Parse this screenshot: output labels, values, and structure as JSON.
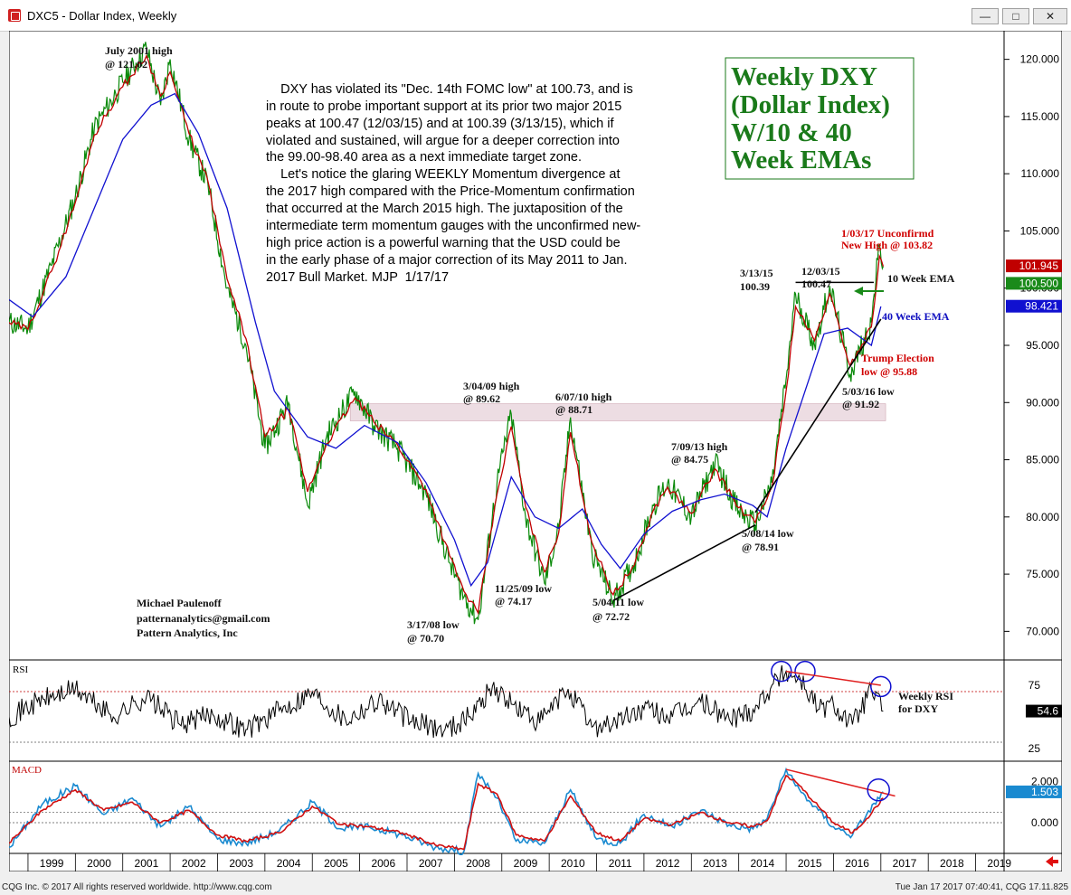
{
  "window": {
    "title": "DXC5 - Dollar Index, Weekly",
    "buttons": {
      "minimize": "—",
      "maximize": "□",
      "close": "✕"
    }
  },
  "footer": {
    "left": "CQG Inc. © 2017 All rights reserved worldwide. http://www.cqg.com",
    "right": "Tue Jan 17 2017 07:40:41, CQG 17.11.825"
  },
  "headline_box": [
    "Weekly DXY",
    "(Dollar Index)",
    "W/10 & 40",
    "Week EMAs"
  ],
  "commentary": [
    "    DXY has violated its \"Dec. 14th FOMC low\" at 100.73, and is",
    "in route to probe important support at its prior two major 2015",
    "peaks at 100.47 (12/03/15) and at 100.39 (3/13/15), which if",
    "violated and sustained, will argue for a deeper correction into",
    "the 99.00-98.40 area as a next immediate target zone.",
    "    Let's notice the glaring WEEKLY Momentum divergence at",
    "the 2017 high compared with the Price-Momentum confirmation",
    "that occurred at the March 2015 high. The juxtaposition of the",
    "intermediate term momentum gauges with the unconfirmed new-",
    "high price action is a powerful warning that the USD could be",
    "in the early phase of a major correction of its May 2011 to Jan.",
    "2017 Bull Market. MJP  1/17/17"
  ],
  "author": [
    "Michael Paulenoff",
    "patternanalytics@gmail.com",
    "Pattern Analytics, Inc"
  ],
  "colors": {
    "price": "#0a8a0a",
    "ema10": "#c00000",
    "ema40": "#1010d0",
    "annotation_red": "#d00000",
    "headline_green": "#1a7a1a"
  },
  "chart_data": [
    {
      "type": "line",
      "title": "DXC5 - Dollar Index, Weekly",
      "x_range": [
        1998.6,
        2019.6
      ],
      "ylim": [
        67.5,
        122.5
      ],
      "y_ticks": [
        70,
        75,
        80,
        85,
        90,
        95,
        100,
        105,
        110,
        115,
        120
      ],
      "y_tick_labels": [
        "70.000",
        "75.000",
        "80.000",
        "85.000",
        "90.000",
        "95.000",
        "100.000",
        "105.000",
        "110.000",
        "115.000",
        "120.000"
      ],
      "x_tick_labels": [
        "1999",
        "2000",
        "2001",
        "2002",
        "2003",
        "2004",
        "2005",
        "2006",
        "2007",
        "2008",
        "2009",
        "2010",
        "2011",
        "2012",
        "2013",
        "2014",
        "2015",
        "2016",
        "2017",
        "2018",
        "2019"
      ],
      "series": [
        {
          "key": "price",
          "x": [
            1998.6,
            1999.0,
            1999.5,
            2000.0,
            2000.4,
            2000.85,
            2001.0,
            2001.5,
            2001.8,
            2002.0,
            2002.4,
            2002.8,
            2003.2,
            2003.6,
            2004.0,
            2004.5,
            2004.9,
            2005.3,
            2005.9,
            2006.3,
            2006.8,
            2007.4,
            2007.9,
            2008.2,
            2008.5,
            2008.9,
            2009.2,
            2009.5,
            2009.9,
            2010.2,
            2010.45,
            2010.9,
            2011.35,
            2011.8,
            2012.2,
            2012.5,
            2013.0,
            2013.5,
            2014.0,
            2014.35,
            2014.7,
            2015.0,
            2015.2,
            2015.6,
            2015.92,
            2016.35,
            2016.8,
            2016.97,
            2017.05
          ],
          "y": [
            97,
            96.5,
            102,
            108,
            114,
            117,
            118,
            121,
            116,
            120,
            113,
            109,
            100,
            95,
            86,
            90,
            81,
            87,
            91,
            88,
            86,
            82,
            76,
            73,
            71,
            83,
            89,
            80,
            74.2,
            79,
            88.7,
            77,
            72.7,
            76,
            81,
            83,
            80,
            84.8,
            80.5,
            79.3,
            83,
            92,
            99.5,
            95,
            100.2,
            92.5,
            97,
            103.8,
            101.9
          ]
        },
        {
          "key": "ema10",
          "x": [
            1998.6,
            1999.0,
            1999.5,
            2000.0,
            2000.4,
            2000.85,
            2001.0,
            2001.5,
            2001.8,
            2002.0,
            2002.4,
            2002.8,
            2003.2,
            2003.6,
            2004.0,
            2004.5,
            2004.9,
            2005.3,
            2005.9,
            2006.3,
            2006.8,
            2007.4,
            2007.9,
            2008.2,
            2008.5,
            2008.9,
            2009.2,
            2009.5,
            2009.9,
            2010.2,
            2010.45,
            2010.9,
            2011.35,
            2011.8,
            2012.2,
            2012.5,
            2013.0,
            2013.5,
            2014.0,
            2014.35,
            2014.7,
            2015.0,
            2015.2,
            2015.6,
            2015.92,
            2016.35,
            2016.8,
            2016.97,
            2017.05
          ],
          "y": [
            97,
            96.4,
            101.5,
            107.5,
            113.4,
            116.6,
            117.6,
            120.3,
            116.8,
            118.9,
            113.5,
            109.3,
            100.8,
            95.6,
            87,
            89.4,
            82.2,
            86.4,
            90.4,
            88.3,
            86.3,
            82.4,
            76.6,
            73.5,
            71.6,
            82,
            87.9,
            80.9,
            75.2,
            78.6,
            87.4,
            77.8,
            73.2,
            75.8,
            80.6,
            82.6,
            80.3,
            84.2,
            80.8,
            79.5,
            82.6,
            91,
            98.4,
            95.4,
            99.5,
            93.2,
            96.6,
            102.8,
            101.9
          ]
        },
        {
          "key": "ema40",
          "x": [
            1998.6,
            1999.1,
            1999.8,
            2000.4,
            2001.0,
            2001.6,
            2002.1,
            2002.6,
            2003.2,
            2003.8,
            2004.2,
            2004.9,
            2005.5,
            2006.1,
            2006.8,
            2007.4,
            2008.0,
            2008.35,
            2008.7,
            2009.2,
            2009.7,
            2010.2,
            2010.7,
            2011.1,
            2011.5,
            2012.0,
            2012.6,
            2013.2,
            2013.7,
            2014.3,
            2014.6,
            2015.0,
            2015.4,
            2015.8,
            2016.3,
            2016.8,
            2017.0
          ],
          "y": [
            99,
            97.5,
            101,
            107,
            113,
            116,
            117,
            113.5,
            107,
            97,
            91,
            87,
            86,
            88,
            86.5,
            83,
            78,
            74,
            76,
            83.5,
            80,
            79,
            80.7,
            77.6,
            75.5,
            78.5,
            80.5,
            81.5,
            82,
            81,
            80,
            86,
            91,
            96,
            96.5,
            95,
            98.4
          ]
        }
      ],
      "levels": [
        {
          "label": "100.39 / 100.47",
          "y": 100.5
        },
        {
          "label": "resistance band",
          "y_from": 88.4,
          "y_to": 89.9
        }
      ],
      "trendlines": [
        {
          "label": "2011-2014 support",
          "x": [
            2011.35,
            2014.35
          ],
          "y": [
            72.7,
            79.3
          ]
        },
        {
          "label": "2014-2017 support",
          "x": [
            2014.35,
            2017.0
          ],
          "y": [
            80.4,
            97.3
          ]
        }
      ],
      "annotations": [
        {
          "lines": [
            "July 2001 high",
            "@ 121.02"
          ],
          "x": 2001.5,
          "y": 121.02,
          "color": "black"
        },
        {
          "lines": [
            "3/17/08 low",
            "@ 70.70"
          ],
          "x": 2008.2,
          "y": 70.7,
          "color": "black"
        },
        {
          "lines": [
            "3/04/09 high",
            "@ 89.62"
          ],
          "x": 2009.2,
          "y": 89.62,
          "color": "black"
        },
        {
          "lines": [
            "11/25/09 low",
            "@ 74.17"
          ],
          "x": 2009.9,
          "y": 74.17,
          "color": "black"
        },
        {
          "lines": [
            "6/07/10 high",
            "@ 88.71"
          ],
          "x": 2010.45,
          "y": 88.71,
          "color": "black"
        },
        {
          "lines": [
            "5/04/11 low",
            "@ 72.72"
          ],
          "x": 2011.35,
          "y": 72.72,
          "color": "black"
        },
        {
          "lines": [
            "7/09/13 high",
            "@ 84.75"
          ],
          "x": 2013.5,
          "y": 84.75,
          "color": "black"
        },
        {
          "lines": [
            "5/08/14 low",
            "@ 78.91"
          ],
          "x": 2014.35,
          "y": 78.91,
          "color": "black"
        },
        {
          "lines": [
            "3/13/15",
            "100.39"
          ],
          "x": 2015.2,
          "y": 100.39,
          "color": "black"
        },
        {
          "lines": [
            "12/03/15",
            "100.47"
          ],
          "x": 2015.92,
          "y": 100.47,
          "color": "black"
        },
        {
          "lines": [
            "5/03/16 low",
            "@ 91.92"
          ],
          "x": 2016.35,
          "y": 91.92,
          "color": "black"
        },
        {
          "lines": [
            "1/03/17 Unconfirmd",
            "New High @ 103.82"
          ],
          "x": 2017.0,
          "y": 103.82,
          "color": "red"
        },
        {
          "lines": [
            "Trump Election",
            "low @ 95.88"
          ],
          "x": 2016.85,
          "y": 95.88,
          "color": "red"
        },
        {
          "lines": [
            "10 Week EMA"
          ],
          "color": "darkred"
        },
        {
          "lines": [
            "40 Week EMA"
          ],
          "color": "blue"
        }
      ],
      "last_values": [
        {
          "label": "101.945",
          "color": "#c00000"
        },
        {
          "label": "100.500",
          "color": "#1a8a1a"
        },
        {
          "label": "98.421",
          "color": "#1010d0"
        }
      ]
    },
    {
      "type": "line",
      "title": "RSI",
      "ylim": [
        15,
        95
      ],
      "y_ticks": [
        25,
        75
      ],
      "y_tick_labels": [
        "25",
        "75"
      ],
      "reference_lines": [
        30,
        70
      ],
      "series": [
        {
          "key": "rsi",
          "x": [
            1998.6,
            1999.2,
            2000.0,
            2000.8,
            2001.5,
            2002.2,
            2002.9,
            2003.6,
            2004.3,
            2005.0,
            2005.7,
            2006.4,
            2007.1,
            2007.8,
            2008.3,
            2008.8,
            2009.2,
            2009.8,
            2010.4,
            2010.9,
            2011.4,
            2012.0,
            2012.6,
            2013.2,
            2013.8,
            2014.3,
            2014.7,
            2015.0,
            2015.3,
            2015.7,
            2016.0,
            2016.4,
            2016.8,
            2017.05
          ],
          "y": [
            50,
            62,
            72,
            50,
            66,
            44,
            52,
            40,
            55,
            70,
            48,
            64,
            46,
            40,
            50,
            74,
            60,
            45,
            72,
            42,
            46,
            56,
            50,
            62,
            48,
            56,
            75,
            86,
            80,
            56,
            60,
            44,
            72,
            54.6
          ]
        }
      ],
      "last_value": "54.6",
      "annotation": [
        "Weekly RSI",
        "for DXY"
      ]
    },
    {
      "type": "line",
      "title": "MACD",
      "ylim": [
        -1.5,
        3.0
      ],
      "y_ticks": [
        0.0,
        2.0
      ],
      "y_tick_labels": [
        "0.000",
        "2.000"
      ],
      "series": [
        {
          "key": "macd",
          "x": [
            1998.6,
            1999.3,
            2000.0,
            2000.6,
            2001.2,
            2001.8,
            2002.4,
            2003.0,
            2003.6,
            2004.3,
            2005.0,
            2005.6,
            2006.2,
            2006.9,
            2007.6,
            2008.2,
            2008.5,
            2008.9,
            2009.3,
            2009.9,
            2010.45,
            2011.0,
            2011.5,
            2012.0,
            2012.6,
            2013.2,
            2013.8,
            2014.3,
            2014.6,
            2015.0,
            2015.2,
            2015.6,
            2016.0,
            2016.4,
            2016.7,
            2017.05
          ],
          "y": [
            -1.2,
            0.9,
            1.8,
            0.4,
            1.2,
            -0.2,
            0.8,
            -0.8,
            -1.0,
            -0.4,
            1.0,
            -0.3,
            -0.2,
            -0.6,
            -1.2,
            -1.4,
            2.4,
            1.2,
            -0.9,
            -1.0,
            1.6,
            -0.8,
            -1.0,
            0.4,
            -0.2,
            0.6,
            -0.1,
            -0.3,
            0.2,
            2.6,
            1.8,
            0.8,
            -0.2,
            -0.6,
            0.4,
            1.5
          ]
        },
        {
          "key": "signal",
          "x": [
            1998.6,
            1999.3,
            2000.0,
            2000.6,
            2001.2,
            2001.8,
            2002.4,
            2003.0,
            2003.6,
            2004.3,
            2005.0,
            2005.6,
            2006.2,
            2006.9,
            2007.6,
            2008.2,
            2008.5,
            2008.9,
            2009.3,
            2009.9,
            2010.45,
            2011.0,
            2011.5,
            2012.0,
            2012.6,
            2013.2,
            2013.8,
            2014.3,
            2014.6,
            2015.0,
            2015.2,
            2015.6,
            2016.0,
            2016.4,
            2016.7,
            2017.05
          ],
          "y": [
            -1.0,
            0.6,
            1.6,
            0.6,
            1.0,
            0.0,
            0.6,
            -0.6,
            -0.9,
            -0.5,
            0.8,
            -0.1,
            -0.2,
            -0.5,
            -1.1,
            -1.3,
            1.9,
            1.4,
            -0.6,
            -0.9,
            1.3,
            -0.5,
            -0.9,
            0.2,
            -0.1,
            0.5,
            0.0,
            -0.2,
            0.1,
            2.3,
            2.0,
            1.0,
            0.0,
            -0.5,
            0.2,
            1.2
          ]
        }
      ],
      "last_values": [
        {
          "label": "2.000"
        },
        {
          "label": "1.503"
        }
      ]
    }
  ]
}
